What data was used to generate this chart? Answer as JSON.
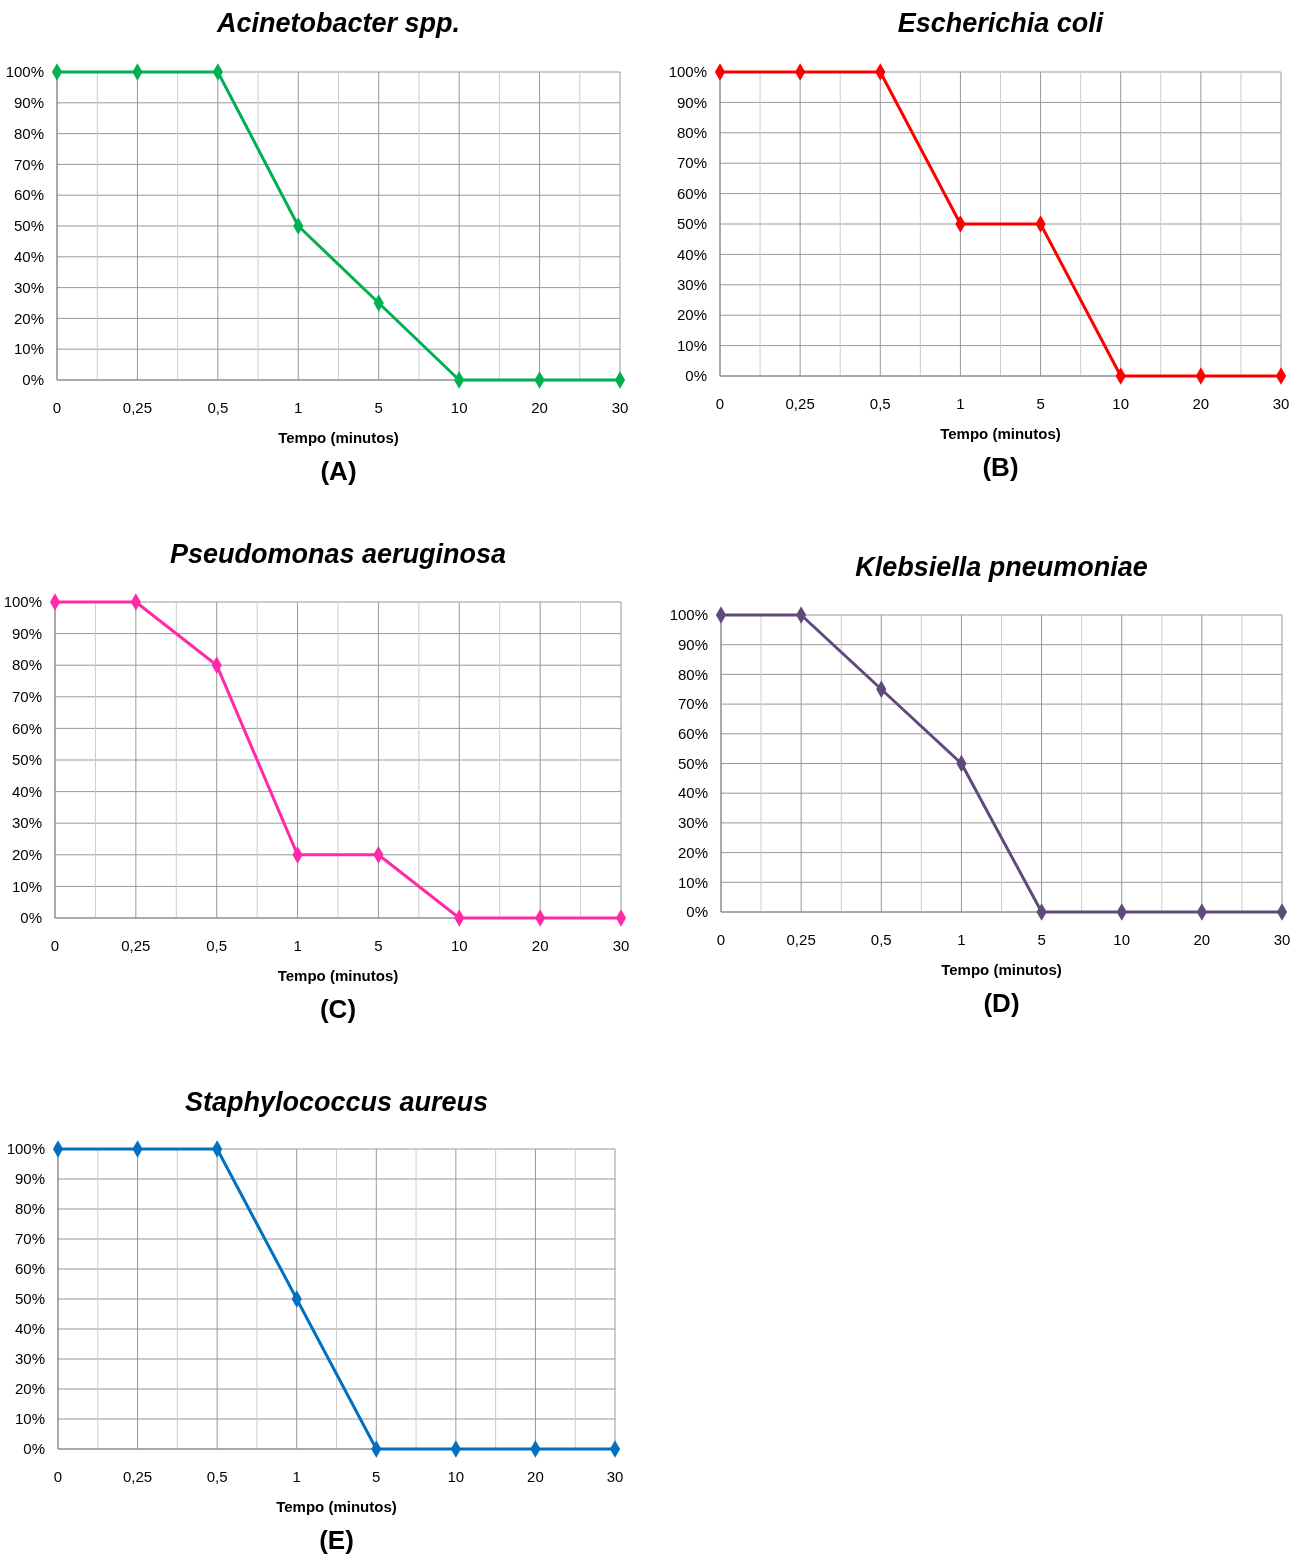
{
  "chart_data": [
    {
      "type": "line",
      "title": "Acinetobacter spp.",
      "xlabel": "Tempo (minutos)",
      "annotations": [
        "(A)"
      ],
      "categories": [
        "0",
        "0,25",
        "0,5",
        "1",
        "5",
        "10",
        "20",
        "30"
      ],
      "series": [
        {
          "color": "#00b050",
          "values": [
            100,
            100,
            100,
            50,
            25,
            0,
            0,
            0
          ]
        }
      ],
      "ylim": [
        0,
        100
      ],
      "yticks": [
        {
          "value": 0,
          "label": "0%"
        },
        {
          "value": 10,
          "label": "10%"
        },
        {
          "value": 20,
          "label": "20%"
        },
        {
          "value": 30,
          "label": "30%"
        },
        {
          "value": 40,
          "label": "40%"
        },
        {
          "value": 50,
          "label": "50%"
        },
        {
          "value": 60,
          "label": "60%"
        },
        {
          "value": 70,
          "label": "70%"
        },
        {
          "value": 80,
          "label": "80%"
        },
        {
          "value": 90,
          "label": "90%"
        },
        {
          "value": 100,
          "label": "100%"
        }
      ],
      "grid": true,
      "marker": "diamond",
      "line_style": "solid"
    },
    {
      "type": "line",
      "title": "Escherichia coli",
      "xlabel": "Tempo (minutos)",
      "annotations": [
        "(B)"
      ],
      "categories": [
        "0",
        "0,25",
        "0,5",
        "1",
        "5",
        "10",
        "20",
        "30"
      ],
      "series": [
        {
          "color": "#ff0000",
          "values": [
            100,
            100,
            100,
            50,
            50,
            0,
            0,
            0
          ]
        }
      ],
      "ylim": [
        0,
        100
      ],
      "yticks": [
        {
          "value": 0,
          "label": "0%"
        },
        {
          "value": 10,
          "label": "10%"
        },
        {
          "value": 20,
          "label": "20%"
        },
        {
          "value": 30,
          "label": "30%"
        },
        {
          "value": 40,
          "label": "40%"
        },
        {
          "value": 50,
          "label": "50%"
        },
        {
          "value": 60,
          "label": "60%"
        },
        {
          "value": 70,
          "label": "70%"
        },
        {
          "value": 80,
          "label": "80%"
        },
        {
          "value": 90,
          "label": "90%"
        },
        {
          "value": 100,
          "label": "100%"
        }
      ],
      "grid": true,
      "marker": "diamond",
      "line_style": "solid"
    },
    {
      "type": "line",
      "title": "Pseudomonas aeruginosa",
      "xlabel": "Tempo (minutos)",
      "annotations": [
        "(C)"
      ],
      "categories": [
        "0",
        "0,25",
        "0,5",
        "1",
        "5",
        "10",
        "20",
        "30"
      ],
      "series": [
        {
          "color": "#ff2aa8",
          "values": [
            100,
            100,
            80,
            20,
            20,
            0,
            0,
            0
          ]
        }
      ],
      "ylim": [
        0,
        100
      ],
      "yticks": [
        {
          "value": 0,
          "label": "0%"
        },
        {
          "value": 10,
          "label": "10%"
        },
        {
          "value": 20,
          "label": "20%"
        },
        {
          "value": 30,
          "label": "30%"
        },
        {
          "value": 40,
          "label": "40%"
        },
        {
          "value": 50,
          "label": "50%"
        },
        {
          "value": 60,
          "label": "60%"
        },
        {
          "value": 70,
          "label": "70%"
        },
        {
          "value": 80,
          "label": "80%"
        },
        {
          "value": 90,
          "label": "90%"
        },
        {
          "value": 100,
          "label": "100%"
        }
      ],
      "grid": true,
      "marker": "diamond",
      "line_style": "solid"
    },
    {
      "type": "line",
      "title": "Klebsiella pneumoniae",
      "xlabel": "Tempo (minutos)",
      "annotations": [
        "(D)"
      ],
      "categories": [
        "0",
        "0,25",
        "0,5",
        "1",
        "5",
        "10",
        "20",
        "30"
      ],
      "series": [
        {
          "color": "#604a7b",
          "values": [
            100,
            100,
            75,
            50,
            0,
            0,
            0,
            0
          ]
        }
      ],
      "ylim": [
        0,
        100
      ],
      "yticks": [
        {
          "value": 0,
          "label": "0%"
        },
        {
          "value": 10,
          "label": "10%"
        },
        {
          "value": 20,
          "label": "20%"
        },
        {
          "value": 30,
          "label": "30%"
        },
        {
          "value": 40,
          "label": "40%"
        },
        {
          "value": 50,
          "label": "50%"
        },
        {
          "value": 60,
          "label": "60%"
        },
        {
          "value": 70,
          "label": "70%"
        },
        {
          "value": 80,
          "label": "80%"
        },
        {
          "value": 90,
          "label": "90%"
        },
        {
          "value": 100,
          "label": "100%"
        }
      ],
      "grid": true,
      "marker": "diamond",
      "line_style": "solid"
    },
    {
      "type": "line",
      "title": "Staphylococcus aureus",
      "xlabel": "Tempo (minutos)",
      "annotations": [
        "(E)"
      ],
      "categories": [
        "0",
        "0,25",
        "0,5",
        "1",
        "5",
        "10",
        "20",
        "30"
      ],
      "series": [
        {
          "color": "#0070c0",
          "values": [
            100,
            100,
            100,
            50,
            0,
            0,
            0,
            0
          ]
        }
      ],
      "ylim": [
        0,
        100
      ],
      "yticks": [
        {
          "value": 0,
          "label": "0%"
        },
        {
          "value": 10,
          "label": "10%"
        },
        {
          "value": 20,
          "label": "20%"
        },
        {
          "value": 30,
          "label": "30%"
        },
        {
          "value": 40,
          "label": "40%"
        },
        {
          "value": 50,
          "label": "50%"
        },
        {
          "value": 60,
          "label": "60%"
        },
        {
          "value": 70,
          "label": "70%"
        },
        {
          "value": 80,
          "label": "80%"
        },
        {
          "value": 90,
          "label": "90%"
        },
        {
          "value": 100,
          "label": "100%"
        }
      ],
      "grid": true,
      "marker": "diamond",
      "line_style": "solid"
    }
  ]
}
